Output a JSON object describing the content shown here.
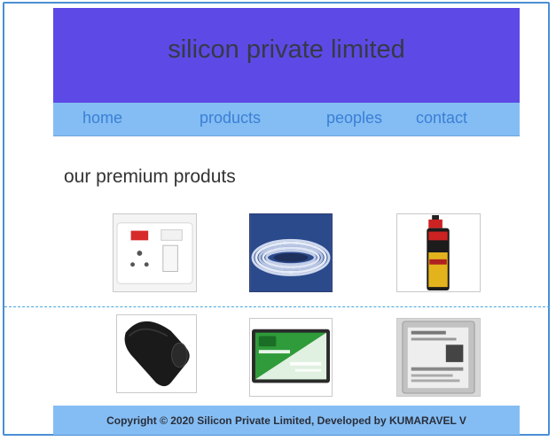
{
  "header": {
    "title": "silicon private limited"
  },
  "nav": {
    "items": [
      {
        "label": "home"
      },
      {
        "label": "products"
      },
      {
        "label": "peoples"
      },
      {
        "label": "contact"
      }
    ]
  },
  "main": {
    "heading": "our premium produts"
  },
  "products": [
    {
      "icon": "switch-socket-icon"
    },
    {
      "icon": "silicone-wire-icon"
    },
    {
      "icon": "silicone-spray-can-icon"
    },
    {
      "icon": "fitness-band-icon"
    },
    {
      "icon": "ssd-drive-icon"
    },
    {
      "icon": "hard-disk-icon"
    }
  ],
  "footer": {
    "copyright": "Copyright © 2020 Silicon Private Limited, Developed by KUMARAVEL V"
  },
  "colors": {
    "header_bg": "#5d4ae6",
    "nav_bg": "#84bdf3",
    "link": "#3b7fd6",
    "border": "#4a8fd4"
  }
}
